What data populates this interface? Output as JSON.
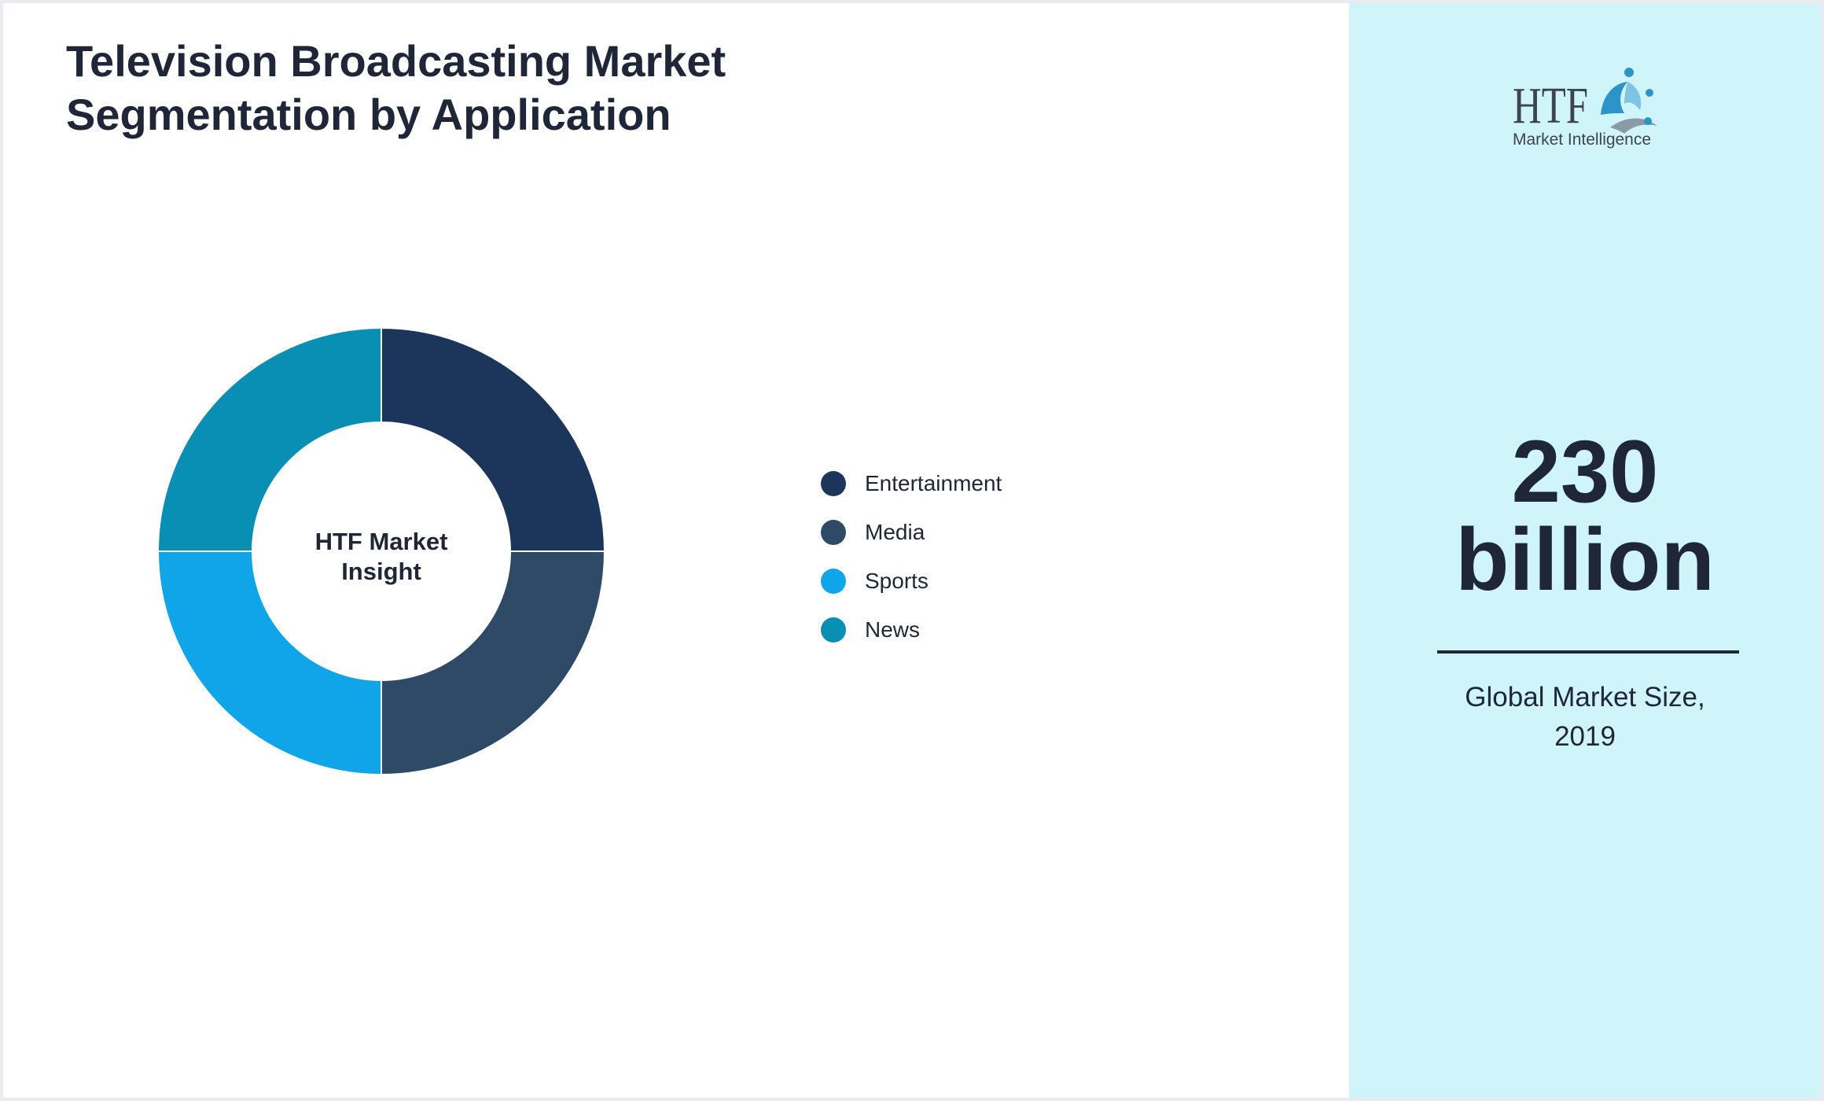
{
  "header": {
    "title_line1": "Television Broadcasting Market",
    "title_line2": "Segmentation by Application"
  },
  "chart_data": {
    "type": "pie",
    "title": "Television Broadcasting Market Segmentation by Application",
    "center_label_line1": "HTF Market",
    "center_label_line2": "Insight",
    "categories": [
      "Entertainment",
      "Media",
      "Sports",
      "News"
    ],
    "values": [
      25,
      25,
      25,
      25
    ],
    "colors": [
      "#1b355b",
      "#2e4a66",
      "#0fa5e8",
      "#0a8fb4"
    ],
    "legend_position": "right"
  },
  "sidebar": {
    "logo": {
      "letters": "HTF",
      "tagline": "Market Intelligence"
    },
    "value_line1": "230",
    "value_line2": "billion",
    "caption_line1": "Global Market Size,",
    "caption_line2": "2019",
    "background": "#cff5fb"
  }
}
